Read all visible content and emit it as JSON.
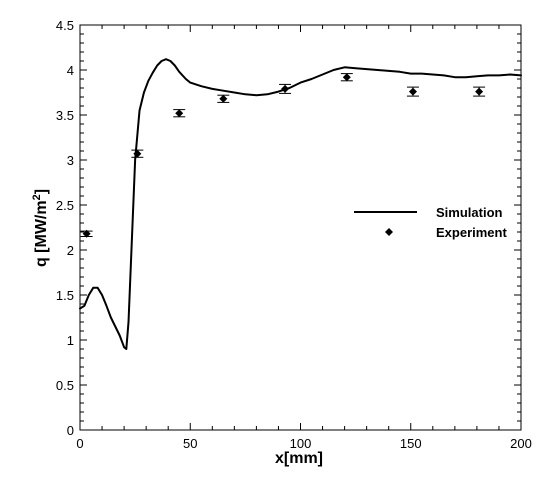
{
  "chart_data": {
    "type": "line",
    "xlabel": "x[mm]",
    "ylabel_main": "q [MW/m",
    "ylabel_sup": "2",
    "ylabel_close": "]",
    "xlim": [
      0,
      200
    ],
    "ylim": [
      0,
      4.5
    ],
    "xticks": [
      "0",
      "50",
      "100",
      "150",
      "200"
    ],
    "yticks": [
      "0",
      "0.5",
      "1",
      "1.5",
      "2",
      "2.5",
      "3",
      "3.5",
      "4",
      "4.5"
    ],
    "legend_position": "right",
    "series": [
      {
        "name": "Simulation",
        "kind": "line",
        "color": "#000000",
        "x": [
          0,
          2,
          4,
          6,
          8,
          10,
          12,
          14,
          16,
          18,
          20,
          21,
          22,
          23,
          25,
          27,
          29,
          31,
          33,
          35,
          37,
          39,
          41,
          43,
          45,
          48,
          50,
          55,
          60,
          65,
          70,
          75,
          80,
          85,
          90,
          95,
          100,
          105,
          110,
          115,
          120,
          125,
          130,
          135,
          140,
          145,
          150,
          155,
          160,
          165,
          170,
          175,
          180,
          185,
          190,
          195,
          200
        ],
        "y": [
          1.35,
          1.38,
          1.5,
          1.58,
          1.58,
          1.5,
          1.38,
          1.25,
          1.15,
          1.05,
          0.92,
          0.9,
          1.2,
          1.8,
          3.0,
          3.55,
          3.75,
          3.88,
          3.97,
          4.05,
          4.1,
          4.12,
          4.1,
          4.05,
          3.98,
          3.9,
          3.86,
          3.82,
          3.79,
          3.77,
          3.75,
          3.73,
          3.72,
          3.73,
          3.76,
          3.8,
          3.86,
          3.9,
          3.95,
          4.0,
          4.03,
          4.02,
          4.01,
          4.0,
          3.99,
          3.98,
          3.96,
          3.96,
          3.95,
          3.94,
          3.92,
          3.92,
          3.93,
          3.94,
          3.94,
          3.95,
          3.94
        ]
      },
      {
        "name": "Experiment",
        "kind": "scatter",
        "marker": "diamond",
        "color": "#000000",
        "x": [
          3,
          26,
          45,
          65,
          93,
          121,
          151,
          181
        ],
        "y": [
          2.18,
          3.07,
          3.52,
          3.68,
          3.79,
          3.92,
          3.76,
          3.76
        ],
        "error": [
          0.03,
          0.04,
          0.04,
          0.04,
          0.05,
          0.04,
          0.05,
          0.05
        ]
      }
    ]
  }
}
